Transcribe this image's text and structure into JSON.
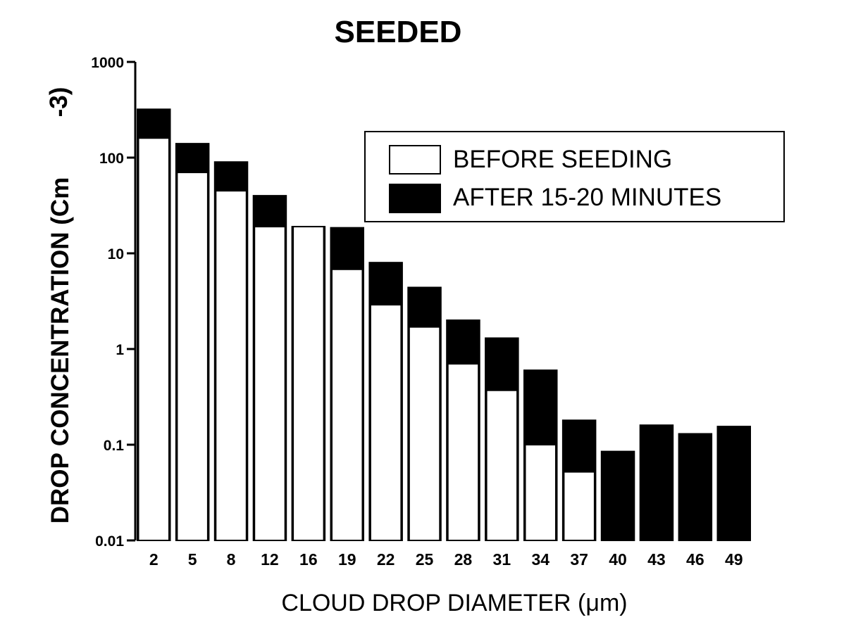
{
  "chart_data": {
    "type": "bar",
    "title": "SEEDED",
    "xlabel": "CLOUD DROP DIAMETER (μm)",
    "ylabel": "DROP CONCENTRATION (Cm",
    "ylabel_superscript": "-3)",
    "yscale": "log",
    "ylim": [
      0.01,
      1000
    ],
    "yticks": [
      "1000",
      "100",
      "10",
      "1",
      "0.1",
      "0.01"
    ],
    "categories": [
      "2",
      "5",
      "8",
      "12",
      "16",
      "19",
      "22",
      "25",
      "28",
      "31",
      "34",
      "37",
      "40",
      "43",
      "46",
      "49"
    ],
    "series": [
      {
        "name": "BEFORE SEEDING",
        "color": "#ffffff",
        "values": [
          160,
          70,
          45,
          19,
          19,
          6.8,
          2.9,
          1.7,
          0.7,
          0.37,
          0.1,
          0.052,
          null,
          null,
          null,
          null
        ]
      },
      {
        "name": "AFTER 15-20 MINUTES",
        "color": "#000000",
        "values": [
          320,
          140,
          90,
          40,
          19,
          18.5,
          8,
          4.4,
          2,
          1.3,
          0.6,
          0.18,
          0.085,
          0.16,
          0.13,
          0.155
        ]
      }
    ],
    "legend_position": "top-right",
    "grid": false
  }
}
